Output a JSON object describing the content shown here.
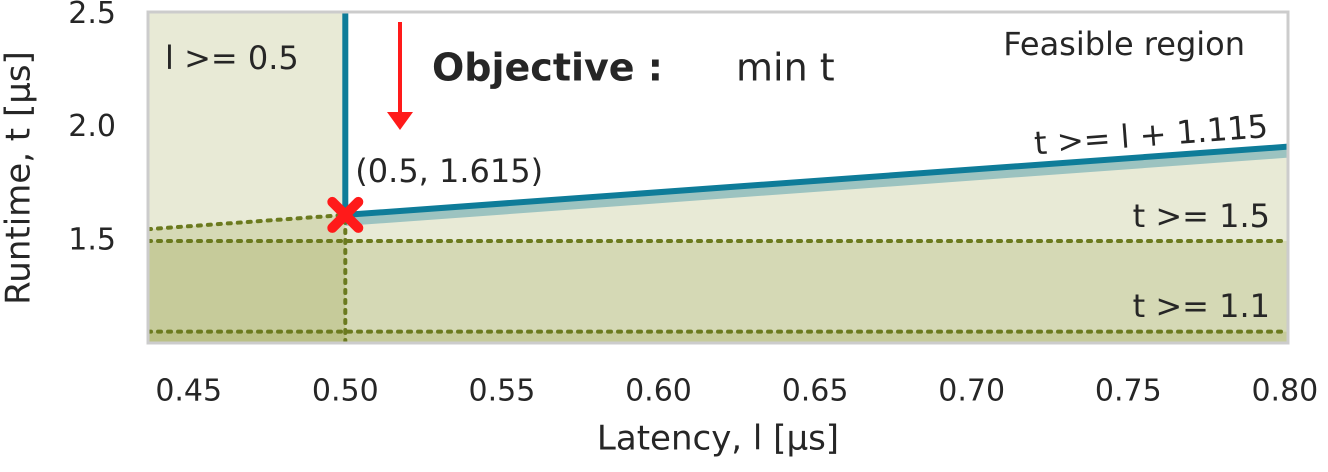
{
  "chart_data": {
    "type": "line",
    "xlabel": "Latency, l [µs]",
    "ylabel": "Runtime, t [µs]",
    "xlim": [
      0.437,
      0.801
    ],
    "ylim": [
      1.05,
      2.51
    ],
    "xticks": [
      0.45,
      {
        "value": 0.5,
        "label": "0.50"
      },
      0.55,
      {
        "value": 0.6,
        "label": "0.60"
      },
      0.65,
      {
        "value": 0.7,
        "label": "0.70"
      },
      0.75,
      {
        "value": 0.8,
        "label": "0.80"
      }
    ],
    "yticks": [
      1.5,
      {
        "value": 2,
        "label": "2.0"
      },
      2.5
    ],
    "grid": false,
    "boundary_color": "#0e7c99",
    "constraint_color": "#6b7a1e",
    "shade_color": "#8a9630",
    "marker_color": "#ff1a1a",
    "constraints": [
      {
        "label": "l >= 0.5",
        "kind": "vertical",
        "value": 0.5
      },
      {
        "label": "t >= l + 1.115",
        "kind": "diagonal",
        "offset": 1.115
      },
      {
        "label": "t >= 1.5",
        "kind": "horizontal",
        "value": 1.5
      },
      {
        "label": "t >= 1.1",
        "kind": "horizontal",
        "value": 1.1
      }
    ],
    "optimum": {
      "x": 0.5,
      "y": 1.615,
      "label": "(0.5, 1.615)"
    },
    "objective_label": "Objective :",
    "objective_text": "min t",
    "region_label": "Feasible region"
  }
}
